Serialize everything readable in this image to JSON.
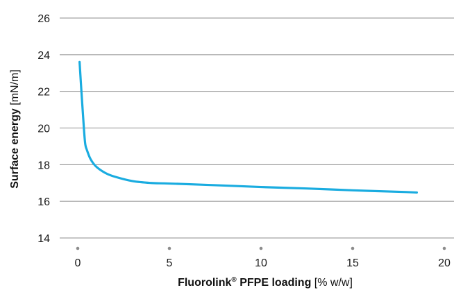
{
  "chart_data": {
    "type": "line",
    "xlabel_main": "Fluorolink",
    "xlabel_sup": "®",
    "xlabel_bold_tail": " PFPE loading ",
    "xlabel_unit": "[% w/w]",
    "ylabel_main": "Surface energy ",
    "ylabel_unit": "[mN/m]",
    "xlim": [
      0,
      20
    ],
    "ylim": [
      14,
      26
    ],
    "x_ticks": [
      "0",
      "5",
      "10",
      "15",
      "20"
    ],
    "y_ticks": [
      "14",
      "16",
      "18",
      "20",
      "22",
      "24",
      "26"
    ],
    "grid": "horizontal",
    "series": [
      {
        "color": "#1aace0",
        "x": [
          0.1,
          0.2,
          0.3,
          0.4,
          0.5,
          0.7,
          1.0,
          1.5,
          2.0,
          3.0,
          4.0,
          5.0,
          7.5,
          10.0,
          12.5,
          15.0,
          17.5,
          18.5
        ],
        "y": [
          23.6,
          22.0,
          20.5,
          19.2,
          18.8,
          18.3,
          17.9,
          17.55,
          17.35,
          17.1,
          17.0,
          16.97,
          16.88,
          16.78,
          16.7,
          16.6,
          16.52,
          16.48
        ]
      }
    ]
  }
}
